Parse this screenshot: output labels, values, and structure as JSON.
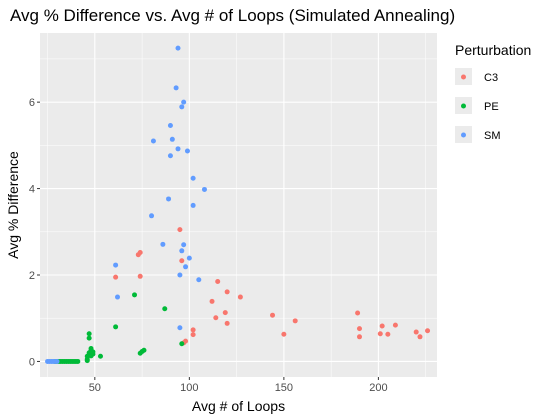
{
  "chart_data": {
    "type": "scatter",
    "title": "Avg % Difference vs. Avg # of Loops (Simulated Annealing)",
    "xlabel": "Avg # of Loops",
    "ylabel": "Avg % Difference",
    "xlim": [
      21,
      231
    ],
    "ylim": [
      -0.36,
      7.6
    ],
    "xticks": [
      50,
      100,
      150,
      200
    ],
    "yticks": [
      0,
      2,
      4,
      6
    ],
    "xtick_labels": [
      "50",
      "100",
      "150",
      "200"
    ],
    "ytick_labels": [
      "0",
      "2",
      "4",
      "6"
    ],
    "grid": true,
    "background": "#EBEBEB",
    "legend": {
      "title": "Perturbation",
      "position": "top-right",
      "entries": [
        "C3",
        "PE",
        "SM"
      ]
    },
    "series": [
      {
        "name": "C3",
        "color": "#F8766D",
        "x": [
          61,
          73,
          74,
          74,
          95,
          96,
          97,
          98,
          102,
          102,
          112,
          114,
          115,
          119,
          120,
          120,
          127,
          144,
          150,
          156,
          189,
          190,
          190,
          201,
          202,
          205,
          209,
          220,
          222,
          226
        ],
        "y": [
          1.95,
          2.47,
          2.52,
          1.97,
          3.05,
          2.33,
          0.43,
          0.47,
          0.62,
          0.73,
          1.39,
          1.01,
          1.85,
          1.13,
          1.61,
          0.88,
          1.49,
          1.07,
          0.63,
          0.94,
          1.12,
          0.76,
          0.57,
          0.64,
          0.82,
          0.63,
          0.84,
          0.68,
          0.57,
          0.71
        ]
      },
      {
        "name": "PE",
        "color": "#00BA38",
        "x": [
          29,
          30,
          31,
          32,
          33,
          34,
          35,
          36,
          37,
          38,
          39,
          40,
          41,
          46,
          46,
          46,
          47,
          47,
          47,
          48,
          48,
          48,
          49,
          49,
          53,
          61,
          71,
          74,
          75,
          76,
          87,
          96
        ],
        "y": [
          0.0,
          0.0,
          0.0,
          0.0,
          0.0,
          0.0,
          0.0,
          0.0,
          0.0,
          0.0,
          0.0,
          0.0,
          0.0,
          0.02,
          0.05,
          0.12,
          0.54,
          0.64,
          0.2,
          0.13,
          0.25,
          0.3,
          0.17,
          0.22,
          0.12,
          0.8,
          1.54,
          0.19,
          0.23,
          0.26,
          1.22,
          0.41
        ]
      },
      {
        "name": "SM",
        "color": "#619CFF",
        "x": [
          25,
          26,
          27,
          28,
          29,
          30,
          61,
          62,
          80,
          81,
          86,
          89,
          90,
          90,
          91,
          93,
          94,
          94,
          95,
          95,
          96,
          96,
          97,
          97,
          98,
          99,
          100,
          102,
          102,
          105,
          108
        ],
        "y": [
          0.0,
          0.0,
          0.0,
          0.0,
          0.0,
          0.0,
          2.23,
          1.49,
          3.37,
          5.1,
          2.71,
          3.76,
          5.46,
          4.76,
          5.14,
          6.33,
          7.25,
          4.92,
          0.78,
          2.0,
          2.56,
          5.89,
          6.0,
          2.7,
          2.19,
          4.87,
          2.39,
          4.24,
          3.61,
          1.89,
          3.98
        ]
      }
    ]
  }
}
